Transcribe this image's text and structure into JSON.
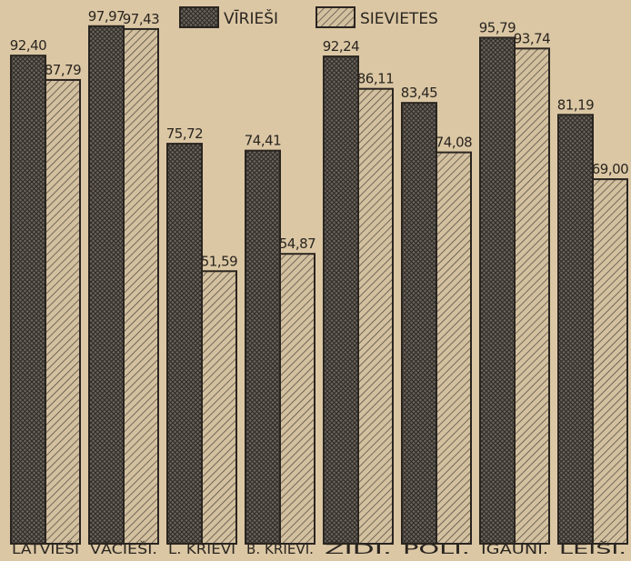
{
  "chart_data": {
    "type": "bar",
    "categories": [
      "LATVIEŠI",
      "VĀCIEŠI.",
      "L. KRIEVI",
      "B. KRIEVI.",
      "ŽIDI.",
      "POLI.",
      "IGAUNI.",
      "LEIŠI."
    ],
    "series": [
      {
        "name": "VĪRIEŠI",
        "values": [
          92.4,
          97.97,
          75.72,
          74.41,
          92.24,
          83.45,
          95.79,
          81.19
        ]
      },
      {
        "name": "SIEVIETES",
        "values": [
          87.79,
          97.43,
          51.59,
          54.87,
          86.11,
          74.08,
          93.74,
          69.0
        ]
      }
    ],
    "value_labels": [
      [
        "92,40",
        "97,97",
        "75,72",
        "74,41",
        "92,24",
        "83,45",
        "95,79",
        "81,19"
      ],
      [
        "87,79",
        "97,43",
        "51,59",
        "54,87",
        "86,11",
        "74,08",
        "93,74",
        "69,00"
      ]
    ],
    "ylim": [
      0,
      100
    ],
    "legend_position": "top-center",
    "grid": false,
    "colors": {
      "background": "#dbc7a4",
      "men_bar": "#5c5650",
      "women_bar": "#cdb897",
      "ink": "#2a2520"
    }
  }
}
